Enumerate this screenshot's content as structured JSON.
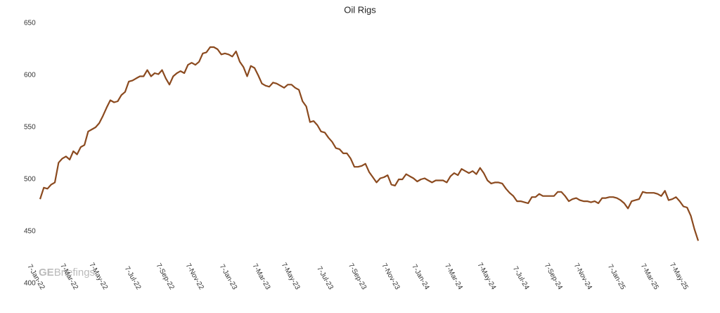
{
  "chart_data": {
    "type": "line",
    "title": "Oil Rigs",
    "watermark": {
      "strong": "GE",
      "light": "Briefings"
    },
    "categories": [
      "7-Jan-22",
      null,
      null,
      null,
      null,
      null,
      null,
      null,
      null,
      "7-Mar-22",
      null,
      null,
      null,
      null,
      null,
      null,
      null,
      "7-May-22",
      null,
      null,
      null,
      null,
      null,
      null,
      null,
      null,
      "7-Jul-22",
      null,
      null,
      null,
      null,
      null,
      null,
      null,
      null,
      "7-Sep-22",
      null,
      null,
      null,
      null,
      null,
      null,
      null,
      "7-Nov-22",
      null,
      null,
      null,
      null,
      null,
      null,
      null,
      null,
      "7-Jan-23",
      null,
      null,
      null,
      null,
      null,
      null,
      null,
      null,
      "7-Mar-23",
      null,
      null,
      null,
      null,
      null,
      null,
      null,
      "7-May-23",
      null,
      null,
      null,
      null,
      null,
      null,
      null,
      null,
      "7-Jul-23",
      null,
      null,
      null,
      null,
      null,
      null,
      null,
      null,
      "7-Sep-23",
      null,
      null,
      null,
      null,
      null,
      null,
      null,
      null,
      "7-Nov-23",
      null,
      null,
      null,
      null,
      null,
      null,
      null,
      "7-Jan-24",
      null,
      null,
      null,
      null,
      null,
      null,
      null,
      null,
      "7-Mar-24",
      null,
      null,
      null,
      null,
      null,
      null,
      null,
      null,
      "7-May-24",
      null,
      null,
      null,
      null,
      null,
      null,
      null,
      null,
      "7-Jul-24",
      null,
      null,
      null,
      null,
      null,
      null,
      null,
      null,
      "7-Sep-24",
      null,
      null,
      null,
      null,
      null,
      null,
      null,
      "7-Nov-24",
      null,
      null,
      null,
      null,
      null,
      null,
      null,
      null,
      "7-Jan-25",
      null,
      null,
      null,
      null,
      null,
      null,
      null,
      null,
      "7-Mar-25",
      null,
      null,
      null,
      null,
      null,
      null,
      null,
      "7-May-25",
      null,
      null,
      null,
      null
    ],
    "series": [
      {
        "name": "Oil Rigs",
        "color": "#8b4a1f",
        "values": [
          481,
          492,
          491,
          495,
          497,
          516,
          520,
          522,
          519,
          527,
          524,
          531,
          533,
          546,
          548,
          550,
          554,
          561,
          569,
          576,
          574,
          575,
          581,
          584,
          594,
          595,
          597,
          599,
          599,
          605,
          599,
          602,
          601,
          605,
          597,
          591,
          599,
          602,
          604,
          602,
          610,
          612,
          610,
          613,
          621,
          622,
          627,
          627,
          625,
          620,
          621,
          620,
          618,
          623,
          613,
          608,
          599,
          609,
          607,
          600,
          592,
          590,
          589,
          593,
          592,
          590,
          588,
          591,
          591,
          588,
          586,
          575,
          570,
          555,
          556,
          552,
          546,
          545,
          540,
          536,
          530,
          529,
          525,
          525,
          520,
          512,
          512,
          513,
          515,
          507,
          502,
          497,
          501,
          502,
          504,
          495,
          494,
          500,
          500,
          505,
          503,
          501,
          498,
          500,
          501,
          499,
          497,
          499,
          499,
          499,
          497,
          503,
          506,
          504,
          510,
          508,
          506,
          508,
          505,
          511,
          506,
          499,
          496,
          497,
          497,
          496,
          491,
          487,
          484,
          479,
          479,
          478,
          477,
          483,
          483,
          486,
          484,
          484,
          484,
          484,
          488,
          488,
          484,
          479,
          481,
          482,
          480,
          479,
          479,
          478,
          479,
          477,
          482,
          482,
          483,
          483,
          482,
          480,
          477,
          472,
          479,
          480,
          481,
          488,
          487,
          487,
          487,
          486,
          484,
          489,
          480,
          481,
          483,
          479,
          474,
          473,
          465,
          452,
          441
        ]
      }
    ],
    "ylim": [
      400,
      650
    ],
    "yticks": [
      400,
      450,
      500,
      550,
      600,
      650
    ],
    "grid": false
  }
}
